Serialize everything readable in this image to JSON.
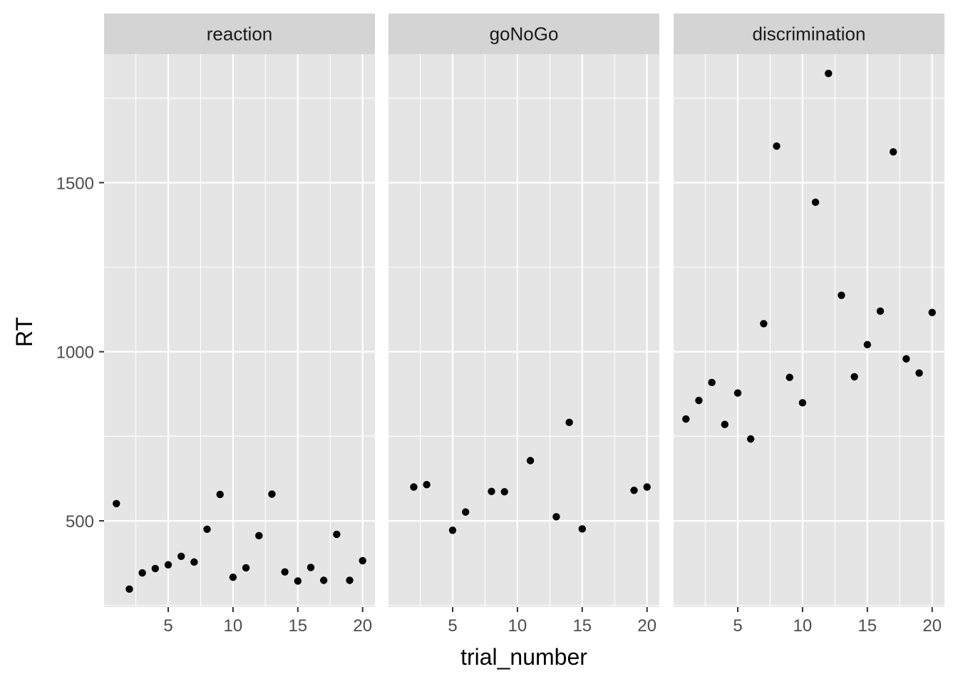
{
  "chart_data": {
    "type": "scatter",
    "facet_by": "task",
    "xlabel": "trial_number",
    "ylabel": "RT",
    "x_ticks": [
      5,
      10,
      15,
      20
    ],
    "x_tick_labels": [
      "5",
      "10",
      "15",
      "20"
    ],
    "xlim": [
      0.05,
      20.95
    ],
    "y_ticks": [
      500,
      1000,
      1500
    ],
    "y_tick_labels": [
      "500",
      "1000",
      "1500"
    ],
    "ylim": [
      245,
      1880
    ],
    "grid": true,
    "theme_colors": {
      "panel_background": "#e5e5e5",
      "strip_background": "#d4d4d4",
      "grid": "#ffffff",
      "point": "#000000"
    },
    "panels": [
      {
        "name": "reaction",
        "points": [
          [
            1,
            551
          ],
          [
            2,
            298
          ],
          [
            3,
            346
          ],
          [
            4,
            359
          ],
          [
            5,
            370
          ],
          [
            6,
            395
          ],
          [
            7,
            378
          ],
          [
            8,
            475
          ],
          [
            9,
            578
          ],
          [
            10,
            333
          ],
          [
            11,
            361
          ],
          [
            12,
            456
          ],
          [
            13,
            579
          ],
          [
            14,
            349
          ],
          [
            15,
            322
          ],
          [
            16,
            362
          ],
          [
            17,
            324
          ],
          [
            18,
            460
          ],
          [
            19,
            324
          ],
          [
            20,
            382
          ]
        ]
      },
      {
        "name": "goNoGo",
        "points": [
          [
            2,
            600
          ],
          [
            3,
            607
          ],
          [
            5,
            472
          ],
          [
            6,
            526
          ],
          [
            8,
            587
          ],
          [
            9,
            586
          ],
          [
            11,
            678
          ],
          [
            13,
            512
          ],
          [
            14,
            791
          ],
          [
            15,
            476
          ],
          [
            19,
            590
          ],
          [
            20,
            600
          ]
        ]
      },
      {
        "name": "discrimination",
        "points": [
          [
            1,
            801
          ],
          [
            2,
            856
          ],
          [
            3,
            909
          ],
          [
            4,
            785
          ],
          [
            5,
            878
          ],
          [
            6,
            742
          ],
          [
            7,
            1083
          ],
          [
            8,
            1608
          ],
          [
            9,
            924
          ],
          [
            10,
            849
          ],
          [
            11,
            1442
          ],
          [
            12,
            1823
          ],
          [
            13,
            1167
          ],
          [
            14,
            926
          ],
          [
            15,
            1021
          ],
          [
            16,
            1120
          ],
          [
            17,
            1591
          ],
          [
            18,
            979
          ],
          [
            19,
            937
          ],
          [
            20,
            1116
          ]
        ]
      }
    ]
  }
}
